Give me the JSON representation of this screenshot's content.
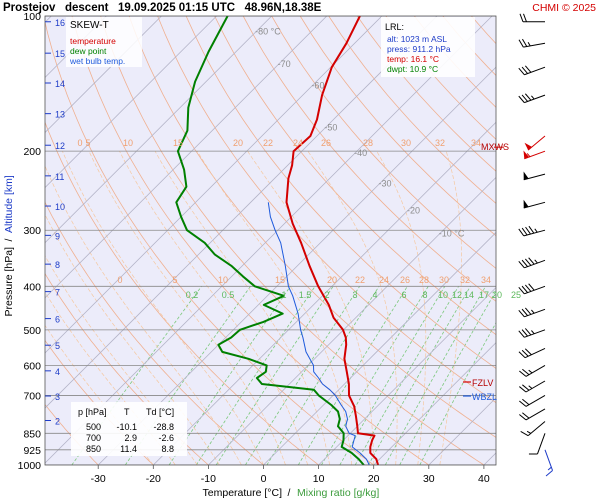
{
  "header": {
    "title": "Prostejov   descent   19.09.2025 01:15 UTC   48.96N,18.38E",
    "credit": "CHMI © 2025"
  },
  "legend": {
    "heading": "SKEW-T",
    "items": [
      {
        "label": "temperature",
        "color": "#d40000"
      },
      {
        "label": "dew point",
        "color": "#008000"
      },
      {
        "label": "wet bulb temp.",
        "color": "#1e5adc"
      }
    ]
  },
  "lrl": {
    "heading": "LRL:",
    "lines": [
      {
        "text": "alt: 1023 m ASL",
        "color": "#1e3cc8"
      },
      {
        "text": "press: 911.2 hPa",
        "color": "#1e3cc8"
      },
      {
        "text": "temp: 16.1 °C",
        "color": "#d40000"
      },
      {
        "text": "dwpt: 10.9 °C",
        "color": "#008000"
      }
    ]
  },
  "table": {
    "headers": [
      "p [hPa]",
      "T",
      "Td [°C]"
    ],
    "rows": [
      [
        "500",
        "-10.1",
        "-28.8"
      ],
      [
        "700",
        "2.9",
        "-2.6"
      ],
      [
        "850",
        "11.4",
        "8.8"
      ]
    ]
  },
  "markers": {
    "mxws": "MXWS",
    "fzlv": "FZLV",
    "wbzl": "WBZL"
  },
  "axes": {
    "xlabel_temperature": "Temperature [°C]",
    "xlabel_separator": "/",
    "xlabel_mixing": "Mixing ratio [g/kg]",
    "ylabel_pressure": "Pressure [hPa]",
    "ylabel_separator": "/",
    "ylabel_altitude": "Altitude [km]"
  },
  "chart_data": {
    "type": "line",
    "chart_kind": "skew-T log-p diagram",
    "x_range_degC_at_1000hPa": [
      -35,
      42
    ],
    "p_range_hPa": [
      1000,
      100
    ],
    "y_scale": "log",
    "pressure_ticks": [
      100,
      200,
      300,
      400,
      500,
      600,
      700,
      850,
      925,
      1000
    ],
    "temperature_ticks": [
      -30,
      -20,
      -10,
      0,
      10,
      20,
      30,
      40
    ],
    "altitude_ticks_km": [
      {
        "km": 2,
        "p": 796
      },
      {
        "km": 3,
        "p": 702
      },
      {
        "km": 4,
        "p": 617
      },
      {
        "km": 5,
        "p": 541
      },
      {
        "km": 6,
        "p": 472
      },
      {
        "km": 7,
        "p": 411
      },
      {
        "km": 8,
        "p": 357
      },
      {
        "km": 9,
        "p": 308
      },
      {
        "km": 10,
        "p": 265
      },
      {
        "km": 11,
        "p": 227
      },
      {
        "km": 12,
        "p": 194
      },
      {
        "km": 13,
        "p": 165
      },
      {
        "km": 14,
        "p": 141
      },
      {
        "km": 15,
        "p": 121
      },
      {
        "km": 16,
        "p": 103
      }
    ],
    "isotherm_labels": [
      {
        "t": -80,
        "text": "-80 °C",
        "p": 110
      },
      {
        "t": -70,
        "text": "-70",
        "p": 130
      },
      {
        "t": -60,
        "text": "-60",
        "p": 145
      },
      {
        "t": -50,
        "text": "-50",
        "p": 180
      },
      {
        "t": -40,
        "text": "-40",
        "p": 205
      },
      {
        "t": -30,
        "text": "-30",
        "p": 240
      },
      {
        "t": -20,
        "text": "-20",
        "p": 275
      },
      {
        "t": -10,
        "text": "-10 °C",
        "p": 310
      }
    ],
    "dry_adiabat_labels_200hPa": [
      "0",
      "5",
      "10",
      "15",
      "20",
      "22",
      "24",
      "26",
      "28",
      "30",
      "32",
      "34"
    ],
    "moist_adiabat_labels_400hPa": [
      "0",
      "5",
      "10",
      "15",
      "20",
      "22",
      "24",
      "26",
      "28",
      "30",
      "32",
      "34"
    ],
    "mixing_ratio_labels": [
      "0.2",
      "0.5",
      "1",
      "1.5",
      "2",
      "3",
      "4",
      "6",
      "8",
      "10",
      "12",
      "14",
      "17",
      "20",
      "25"
    ],
    "series": [
      {
        "name": "temperature",
        "color": "#d40000",
        "points": [
          [
            1000,
            20.8
          ],
          [
            970,
            19.4
          ],
          [
            940,
            17.2
          ],
          [
            911.2,
            16.1
          ],
          [
            880,
            15.2
          ],
          [
            860,
            14.8
          ],
          [
            850,
            11.4
          ],
          [
            820,
            10.0
          ],
          [
            780,
            8.0
          ],
          [
            740,
            5.8
          ],
          [
            700,
            2.9
          ],
          [
            660,
            0.8
          ],
          [
            620,
            -1.8
          ],
          [
            580,
            -4.6
          ],
          [
            540,
            -6.8
          ],
          [
            520,
            -8.2
          ],
          [
            500,
            -10.1
          ],
          [
            470,
            -14.0
          ],
          [
            440,
            -17.2
          ],
          [
            400,
            -22.5
          ],
          [
            360,
            -27.8
          ],
          [
            320,
            -33.5
          ],
          [
            290,
            -38.5
          ],
          [
            260,
            -43.5
          ],
          [
            230,
            -47.5
          ],
          [
            215,
            -49.2
          ],
          [
            200,
            -51.5
          ],
          [
            185,
            -51.2
          ],
          [
            170,
            -53.0
          ],
          [
            150,
            -56.5
          ],
          [
            130,
            -59.8
          ],
          [
            115,
            -61.5
          ],
          [
            100,
            -64.0
          ]
        ]
      },
      {
        "name": "dew point",
        "color": "#008000",
        "points": [
          [
            1000,
            18.2
          ],
          [
            970,
            16.2
          ],
          [
            940,
            13.8
          ],
          [
            911.2,
            10.9
          ],
          [
            880,
            10.0
          ],
          [
            860,
            9.2
          ],
          [
            850,
            8.8
          ],
          [
            820,
            6.5
          ],
          [
            790,
            5.5
          ],
          [
            760,
            3.8
          ],
          [
            735,
            1.4
          ],
          [
            700,
            -2.6
          ],
          [
            680,
            -4.5
          ],
          [
            660,
            -15.0
          ],
          [
            640,
            -17.0
          ],
          [
            620,
            -16.5
          ],
          [
            600,
            -17.5
          ],
          [
            580,
            -22.0
          ],
          [
            560,
            -28.0
          ],
          [
            540,
            -30.0
          ],
          [
            520,
            -29.0
          ],
          [
            500,
            -28.8
          ],
          [
            480,
            -26.0
          ],
          [
            460,
            -24.0
          ],
          [
            440,
            -29.0
          ],
          [
            420,
            -27.0
          ],
          [
            400,
            -34.0
          ],
          [
            380,
            -38.0
          ],
          [
            360,
            -42.0
          ],
          [
            340,
            -47.0
          ],
          [
            320,
            -51.0
          ],
          [
            300,
            -56.5
          ],
          [
            280,
            -60.0
          ],
          [
            260,
            -63.5
          ],
          [
            240,
            -64.5
          ],
          [
            220,
            -68.0
          ],
          [
            200,
            -72.5
          ],
          [
            180,
            -74.5
          ],
          [
            160,
            -78.5
          ],
          [
            140,
            -82.0
          ],
          [
            120,
            -85.0
          ],
          [
            100,
            -88.0
          ]
        ]
      },
      {
        "name": "wet bulb temp.",
        "color": "#1e5adc",
        "points": [
          [
            1000,
            19.2
          ],
          [
            970,
            17.6
          ],
          [
            940,
            15.3
          ],
          [
            911.2,
            12.8
          ],
          [
            880,
            11.9
          ],
          [
            860,
            11.3
          ],
          [
            850,
            9.8
          ],
          [
            820,
            7.9
          ],
          [
            790,
            6.9
          ],
          [
            760,
            5.2
          ],
          [
            735,
            3.2
          ],
          [
            700,
            0.4
          ],
          [
            680,
            -1.6
          ],
          [
            660,
            -4.0
          ],
          [
            640,
            -5.8
          ],
          [
            620,
            -7.8
          ],
          [
            600,
            -9.0
          ],
          [
            560,
            -12.8
          ],
          [
            520,
            -16.0
          ],
          [
            500,
            -17.8
          ],
          [
            460,
            -21.2
          ],
          [
            420,
            -25.4
          ],
          [
            400,
            -27.9
          ],
          [
            360,
            -32.2
          ],
          [
            320,
            -37.2
          ],
          [
            300,
            -40.5
          ],
          [
            280,
            -43.8
          ],
          [
            260,
            -46.8
          ]
        ]
      }
    ],
    "annotation_levels": [
      {
        "label": "MXWS",
        "p": 200
      },
      {
        "label": "FZLV",
        "p": 662
      },
      {
        "label": "WBZL",
        "p": 702
      }
    ],
    "wind_barbs": [
      {
        "p": 925,
        "dir": 160,
        "kt": 15
      },
      {
        "p": 850,
        "dir": 200,
        "kt": 10
      },
      {
        "p": 800,
        "dir": 230,
        "kt": 15
      },
      {
        "p": 750,
        "dir": 240,
        "kt": 20
      },
      {
        "p": 700,
        "dir": 240,
        "kt": 20
      },
      {
        "p": 650,
        "dir": 240,
        "kt": 25
      },
      {
        "p": 600,
        "dir": 240,
        "kt": 25
      },
      {
        "p": 550,
        "dir": 245,
        "kt": 30
      },
      {
        "p": 500,
        "dir": 250,
        "kt": 35
      },
      {
        "p": 450,
        "dir": 250,
        "kt": 35
      },
      {
        "p": 400,
        "dir": 250,
        "kt": 40
      },
      {
        "p": 350,
        "dir": 250,
        "kt": 45
      },
      {
        "p": 300,
        "dir": 255,
        "kt": 45
      },
      {
        "p": 260,
        "dir": 255,
        "kt": 50
      },
      {
        "p": 225,
        "dir": 255,
        "kt": 50
      },
      {
        "p": 200,
        "dir": 250,
        "kt": 55
      },
      {
        "p": 185,
        "dir": 230,
        "kt": 50
      },
      {
        "p": 150,
        "dir": 250,
        "kt": 35
      },
      {
        "p": 130,
        "dir": 250,
        "kt": 30
      },
      {
        "p": 115,
        "dir": 260,
        "kt": 25
      },
      {
        "p": 103,
        "dir": 270,
        "kt": 20
      }
    ]
  }
}
